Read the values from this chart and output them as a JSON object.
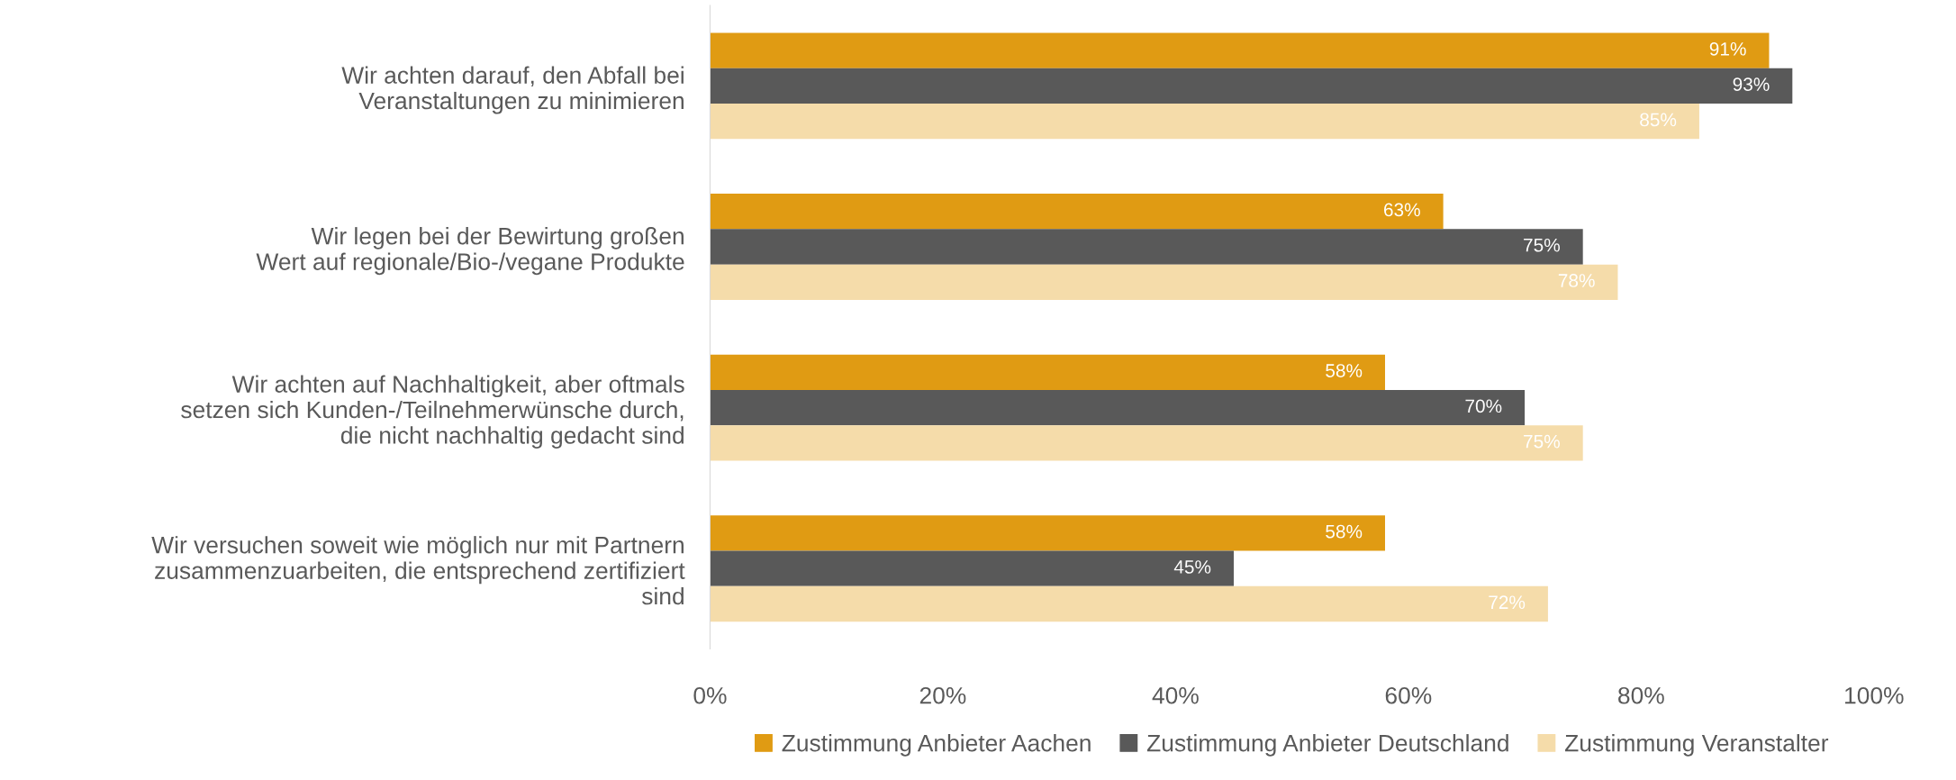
{
  "chart_data": {
    "type": "bar",
    "orientation": "horizontal",
    "categories": [
      "Wir achten darauf, den Abfall bei\nVeranstaltungen zu minimieren",
      "Wir legen bei der Bewirtung großen\nWert auf regionale/Bio-/vegane Produkte",
      "Wir achten auf Nachhaltigkeit, aber oftmals\nsetzen sich Kunden-/Teilnehmerwünsche durch,\ndie nicht nachhaltig gedacht sind",
      "Wir versuchen soweit wie möglich nur mit Partnern\nzusammenzuarbeiten, die entsprechend zertifiziert\nsind"
    ],
    "series": [
      {
        "name": "Zustimmung Anbieter Aachen",
        "color": "#e09b13",
        "values": [
          91,
          63,
          58,
          58
        ],
        "value_labels": [
          "91%",
          "63%",
          "58%",
          "58%"
        ]
      },
      {
        "name": "Zustimmung Anbieter Deutschland",
        "color": "#595959",
        "values": [
          93,
          75,
          70,
          45
        ],
        "value_labels": [
          "93%",
          "75%",
          "70%",
          "45%"
        ]
      },
      {
        "name": "Zustimmung Veranstalter",
        "color": "#f5dcaa",
        "values": [
          85,
          78,
          75,
          72
        ],
        "value_labels": [
          "85%",
          "78%",
          "75%",
          "72%"
        ]
      }
    ],
    "xlim": [
      0,
      100
    ],
    "xticks": [
      {
        "value": 0,
        "label": "0%"
      },
      {
        "value": 20,
        "label": "20%"
      },
      {
        "value": 40,
        "label": "40%"
      },
      {
        "value": 60,
        "label": "60%"
      },
      {
        "value": 80,
        "label": "80%"
      },
      {
        "value": 100,
        "label": "100%"
      }
    ],
    "grid": false,
    "legend": "bottom"
  }
}
